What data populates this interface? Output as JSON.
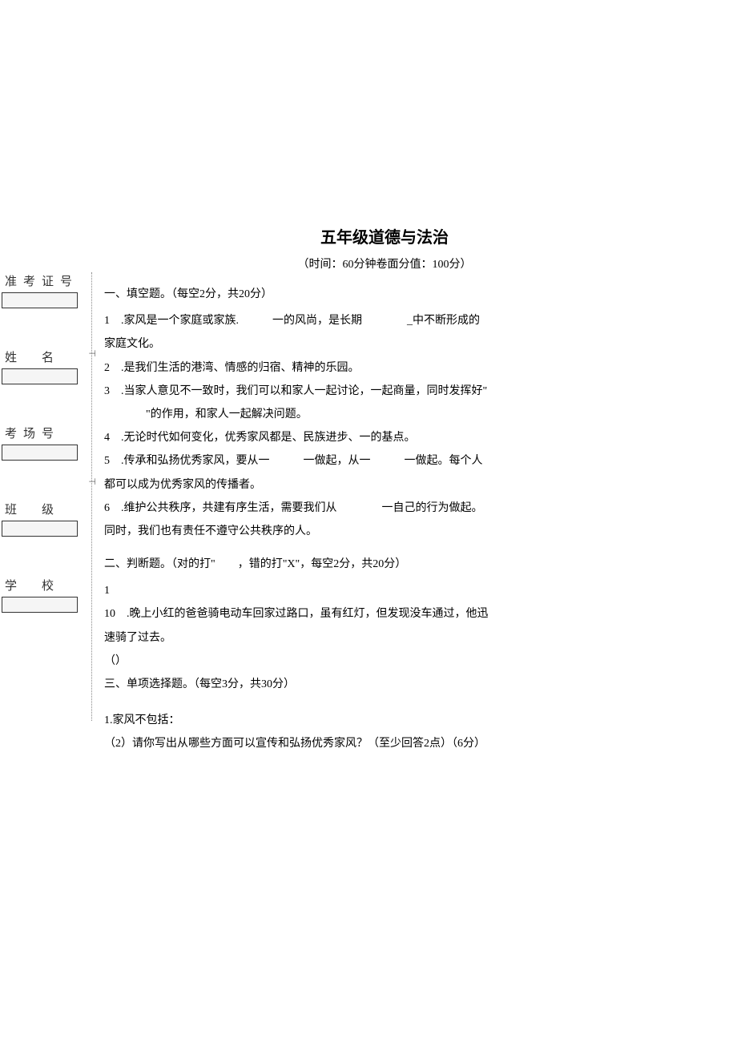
{
  "sidebar": {
    "fields": [
      {
        "label": "准考证号"
      },
      {
        "label": "姓　名"
      },
      {
        "label": "考场号"
      },
      {
        "label": "班　级"
      },
      {
        "label": "学　校"
      }
    ]
  },
  "document": {
    "title": "五年级道德与法治",
    "subtitle": "（时间：60分钟卷面分值：100分）",
    "section1_heading": "一、填空题。（每空2分，共20分）",
    "q1_line1": "1　.家风是一个家庭或家族.　　　一的风尚，是长期　　　　_中不断形成的",
    "q1_line2": "家庭文化。",
    "q2": "2　.是我们生活的港湾、情感的归宿、精神的乐园。",
    "q3_line1": "3　.当家人意见不一致时，我们可以和家人一起讨论，一起商量，同时发挥好\"",
    "q3_line2": "　　\"的作用，和家人一起解决问题。",
    "q4": "4　.无论时代如何变化，优秀家风都是、民族进步、一的基点。",
    "q5_line1": "5　.传承和弘扬优秀家风，要从一　　　一做起，从一　　　一做起。每个人",
    "q5_line2": "都可以成为优秀家风的传播者。",
    "q6_line1": "6　.维护公共秩序，共建有序生活，需要我们从　　　　一自己的行为做起。",
    "q6_line2": "同时，我们也有责任不遵守公共秩序的人。",
    "section2_heading": "二、判断题。（对的打\"　　，错的打\"X\"，每空2分，共20分）",
    "q_single_1": "1",
    "q10_line1": "10　.晚上小红的爸爸骑电动车回家过路口，虽有红灯，但发现没车通过，他迅",
    "q10_line2": "速骑了过去。",
    "q10_line3": "（）",
    "section3_heading": "三、单项选择题。（每空3分，共30分）",
    "q3_1": "1.家风不包括：",
    "q_sub2": "（2）请你写出从哪些方面可以宣传和弘扬优秀家风？（至少回答2点）（6分）"
  },
  "colors": {
    "text": "#000000",
    "background": "#ffffff",
    "border": "#333333",
    "dotted_line": "#888888",
    "input_bg": "#f5f5f5"
  },
  "typography": {
    "title_fontsize": 20,
    "body_fontsize": 14,
    "sidebar_label_fontsize": 15,
    "font_family": "SimSun"
  }
}
